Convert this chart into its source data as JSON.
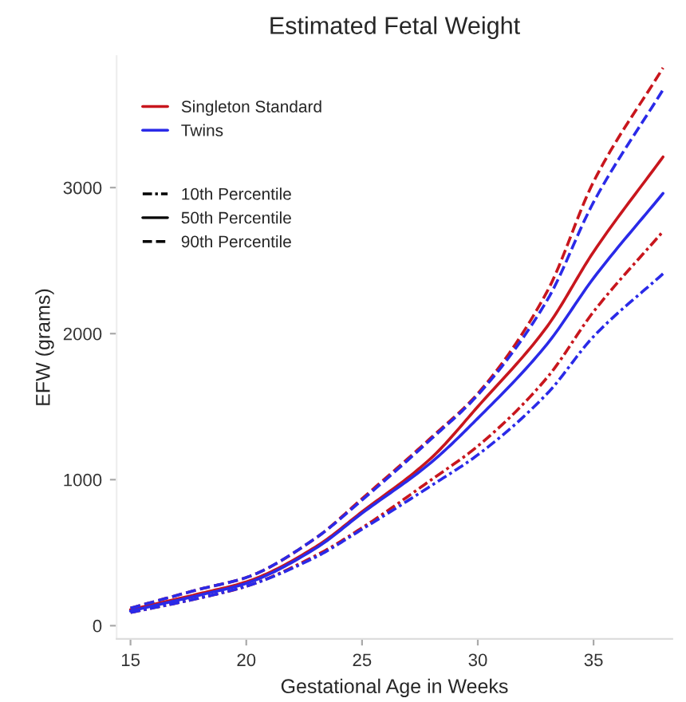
{
  "chart_data": {
    "type": "line",
    "title": "Estimated Fetal Weight",
    "xlabel": "Gestational Age in Weeks",
    "ylabel": "EFW (grams)",
    "x": [
      15,
      18,
      20,
      23,
      25,
      28,
      30,
      33,
      35,
      38
    ],
    "series": [
      {
        "color": "#c8161d",
        "line_style": "dashdot",
        "values": [
          90,
          190,
          270,
          480,
          670,
          1000,
          1230,
          1700,
          2150,
          2700
        ]
      },
      {
        "name": "Singleton Standard",
        "color": "#c8161d",
        "line_style": "solid",
        "values": [
          110,
          220,
          300,
          540,
          780,
          1150,
          1500,
          2050,
          2560,
          3210
        ]
      },
      {
        "color": "#c8161d",
        "line_style": "dashed",
        "values": [
          120,
          250,
          330,
          600,
          870,
          1290,
          1590,
          2290,
          3040,
          3820
        ]
      },
      {
        "color": "#2a2ae8",
        "line_style": "dashdot",
        "values": [
          90,
          190,
          270,
          470,
          660,
          960,
          1170,
          1590,
          1980,
          2410
        ]
      },
      {
        "name": "Twins",
        "color": "#2a2ae8",
        "line_style": "solid",
        "values": [
          100,
          210,
          290,
          530,
          770,
          1120,
          1420,
          1930,
          2380,
          2960
        ]
      },
      {
        "color": "#2a2ae8",
        "line_style": "dashed",
        "values": [
          120,
          250,
          330,
          600,
          860,
          1280,
          1580,
          2230,
          2900,
          3670
        ]
      }
    ],
    "annotations": [
      "10th Percentile",
      "50th Percentile",
      "90th Percentile"
    ],
    "xlim": [
      14.4,
      38.4
    ],
    "xticks": [
      15,
      20,
      25,
      30,
      35
    ],
    "ylim": [
      -90,
      3900
    ],
    "yticks": [
      0,
      1000,
      2000,
      3000
    ],
    "legend": "top left",
    "grid": false
  }
}
